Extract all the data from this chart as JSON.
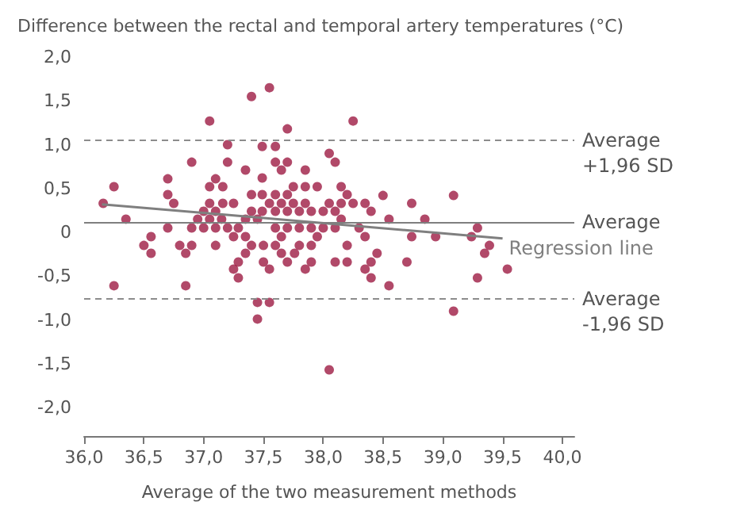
{
  "chart_data": {
    "type": "scatter",
    "ylabel": "Difference between the rectal and temporal artery temperatures (°C)",
    "xlabel": "Average of the two measurement methods",
    "xlim": [
      36,
      40.1
    ],
    "ylim": [
      -2,
      2
    ],
    "xticks": [
      {
        "value": 36,
        "label": "36,0"
      },
      {
        "value": 36.5,
        "label": "36,5"
      },
      {
        "value": 37,
        "label": "37,0"
      },
      {
        "value": 37.5,
        "label": "37,5"
      },
      {
        "value": 38,
        "label": "38,0"
      },
      {
        "value": 38.5,
        "label": "38,5"
      },
      {
        "value": 39,
        "label": "39,0"
      },
      {
        "value": 39.5,
        "label": "39,5"
      },
      {
        "value": 40,
        "label": "40,0"
      }
    ],
    "yticks": [
      {
        "value": -2,
        "label": "-2,0"
      },
      {
        "value": -1.5,
        "label": "-1,5"
      },
      {
        "value": -1,
        "label": "-1,0"
      },
      {
        "value": -0.5,
        "label": "-0,5"
      },
      {
        "value": 0,
        "label": "0"
      },
      {
        "value": 0.5,
        "label": "0,5"
      },
      {
        "value": 1,
        "label": "1,0"
      },
      {
        "value": 1.5,
        "label": "1,5"
      },
      {
        "value": 2,
        "label": "2,0"
      }
    ],
    "grid": false,
    "marker": "circle",
    "series": [
      {
        "color": "#9e1b44",
        "x": [
          37.4,
          37.55,
          37.05,
          37.7,
          38.25,
          37.2,
          37.49,
          37.6,
          38.05,
          38.1,
          36.9,
          37.2,
          37.6,
          37.7,
          37.35,
          37.65,
          37.85,
          36.7,
          37.1,
          37.49,
          36.25,
          37.05,
          37.16,
          37.75,
          37.85,
          37.95,
          38.15,
          36.7,
          37.4,
          37.49,
          37.6,
          37.7,
          38.2,
          38.5,
          39.09,
          36.16,
          36.75,
          37.05,
          37.16,
          37.25,
          37.55,
          37.65,
          37.75,
          37.85,
          38.05,
          38.15,
          38.25,
          38.35,
          38.74,
          37.0,
          37.1,
          37.4,
          37.49,
          37.6,
          37.7,
          37.8,
          37.9,
          38.0,
          38.1,
          38.4,
          36.35,
          36.95,
          37.05,
          37.15,
          37.35,
          37.45,
          38.15,
          38.55,
          38.85,
          36.7,
          36.9,
          37.0,
          37.1,
          37.2,
          37.29,
          37.6,
          37.7,
          37.8,
          37.9,
          38.0,
          38.1,
          38.3,
          39.29,
          36.56,
          37.25,
          37.35,
          37.65,
          37.95,
          38.35,
          38.74,
          38.94,
          39.24,
          36.5,
          36.8,
          36.9,
          37.1,
          37.4,
          37.5,
          37.6,
          37.8,
          37.9,
          38.2,
          39.39,
          36.56,
          36.85,
          37.35,
          37.65,
          37.76,
          38.45,
          39.35,
          37.29,
          37.5,
          37.7,
          37.9,
          38.1,
          38.2,
          38.4,
          38.7,
          37.25,
          37.55,
          37.85,
          38.35,
          39.54,
          37.29,
          38.4,
          39.29,
          36.25,
          36.85,
          38.55,
          37.45,
          37.55,
          39.09,
          37.45,
          38.05
        ],
        "values": [
          1.55,
          1.65,
          1.27,
          1.18,
          1.27,
          1.0,
          0.98,
          0.98,
          0.9,
          0.8,
          0.8,
          0.8,
          0.8,
          0.8,
          0.71,
          0.71,
          0.71,
          0.61,
          0.61,
          0.62,
          0.52,
          0.52,
          0.52,
          0.52,
          0.52,
          0.52,
          0.52,
          0.43,
          0.43,
          0.43,
          0.43,
          0.43,
          0.43,
          0.42,
          0.42,
          0.33,
          0.33,
          0.33,
          0.33,
          0.33,
          0.33,
          0.33,
          0.33,
          0.33,
          0.33,
          0.33,
          0.33,
          0.33,
          0.33,
          0.24,
          0.24,
          0.24,
          0.24,
          0.24,
          0.24,
          0.24,
          0.24,
          0.24,
          0.24,
          0.24,
          0.15,
          0.15,
          0.15,
          0.15,
          0.15,
          0.15,
          0.15,
          0.15,
          0.15,
          0.05,
          0.05,
          0.05,
          0.05,
          0.05,
          0.05,
          0.05,
          0.05,
          0.05,
          0.05,
          0.05,
          0.05,
          0.05,
          0.05,
          -0.05,
          -0.05,
          -0.05,
          -0.05,
          -0.05,
          -0.05,
          -0.05,
          -0.05,
          -0.05,
          -0.15,
          -0.15,
          -0.15,
          -0.15,
          -0.15,
          -0.15,
          -0.15,
          -0.15,
          -0.15,
          -0.15,
          -0.15,
          -0.24,
          -0.24,
          -0.24,
          -0.24,
          -0.24,
          -0.24,
          -0.24,
          -0.34,
          -0.34,
          -0.34,
          -0.34,
          -0.34,
          -0.34,
          -0.34,
          -0.34,
          -0.42,
          -0.42,
          -0.42,
          -0.42,
          -0.42,
          -0.52,
          -0.52,
          -0.52,
          -0.61,
          -0.61,
          -0.61,
          -0.8,
          -0.8,
          -0.9,
          -0.99,
          -1.57
        ]
      },
      {
        "type": "line",
        "name": "Regression line",
        "color": "#7f7f7f",
        "x": [
          36.15,
          39.5
        ],
        "values": [
          0.32,
          -0.07
        ],
        "marker": "none",
        "line_style": "solid"
      }
    ],
    "ref_lines": [
      {
        "axis": "y",
        "value": 1.05,
        "label": "Average\n+1,96 SD",
        "color": "#8c8c8c",
        "line_style": "dashed"
      },
      {
        "axis": "y",
        "value": 0.12,
        "label": "Average",
        "color": "#7f7f7f",
        "line_style": "solid"
      },
      {
        "axis": "y",
        "value": -0.76,
        "label": "Average\n-1,96 SD",
        "color": "#8c8c8c",
        "line_style": "dashed"
      }
    ]
  }
}
